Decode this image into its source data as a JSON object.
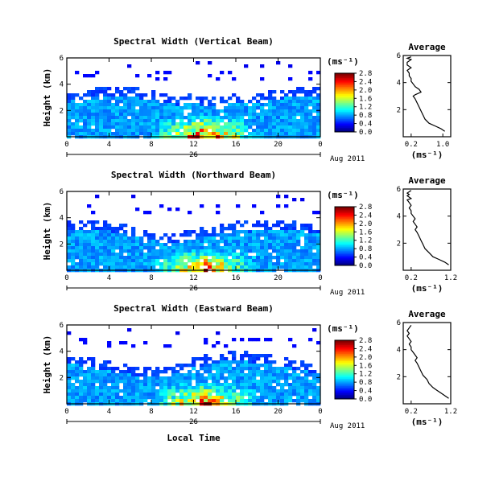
{
  "figure": {
    "bottom_xlabel": "Local Time",
    "date_label": "Aug 2011",
    "day_label": "26",
    "colorbar_unit": "(ms⁻¹)",
    "avg_title": "Average",
    "avg_xlabel": "(ms⁻¹)"
  },
  "chart_data": [
    {
      "type": "heatmap",
      "title": "Spectral Width (Vertical Beam)",
      "ylabel": "Height (km)",
      "xlabel": "Local Time",
      "xticks": [
        "0",
        "4",
        "8",
        "12",
        "16",
        "20",
        "0"
      ],
      "xlim": [
        0,
        24
      ],
      "yticks": [
        "2",
        "4",
        "6"
      ],
      "ylim": [
        0,
        6
      ],
      "colorbar_ticks": [
        "0.0",
        "0.4",
        "0.8",
        "1.2",
        "1.6",
        "2.0",
        "2.4",
        "2.8"
      ],
      "colorbar_range": [
        0,
        2.8
      ],
      "profile": {
        "title": "Average",
        "xlabel": "(ms⁻¹)",
        "xticks": [
          "0.2",
          "1.0"
        ],
        "xlim": [
          0,
          1.2
        ],
        "yticks": [
          "2",
          "4",
          "6"
        ],
        "ylim": [
          0,
          6
        ],
        "x": [
          1.05,
          0.95,
          0.8,
          0.65,
          0.55,
          0.5,
          0.45,
          0.4,
          0.35,
          0.3,
          0.25,
          0.3,
          0.45,
          0.4,
          0.3,
          0.25,
          0.2,
          0.2,
          0.15,
          0.15,
          0.1,
          0.15,
          0.2,
          0.1,
          0.1,
          0.15,
          0.2,
          0.1,
          0.2
        ],
        "y": [
          0.4,
          0.6,
          0.8,
          1.0,
          1.3,
          1.6,
          1.9,
          2.2,
          2.5,
          2.8,
          3.0,
          3.1,
          3.3,
          3.5,
          3.7,
          3.9,
          4.1,
          4.3,
          4.5,
          4.7,
          4.9,
          5.0,
          5.1,
          5.3,
          5.5,
          5.6,
          5.7,
          5.8,
          5.9
        ]
      }
    },
    {
      "type": "heatmap",
      "title": "Spectral Width (Northward Beam)",
      "ylabel": "Height (km)",
      "xlabel": "Local Time",
      "xticks": [
        "0",
        "4",
        "8",
        "12",
        "16",
        "20",
        "0"
      ],
      "xlim": [
        0,
        24
      ],
      "yticks": [
        "2",
        "4",
        "6"
      ],
      "ylim": [
        0,
        6
      ],
      "colorbar_ticks": [
        "0.0",
        "0.4",
        "0.8",
        "1.2",
        "1.6",
        "2.0",
        "2.4",
        "2.8"
      ],
      "colorbar_range": [
        0,
        2.8
      ],
      "profile": {
        "title": "Average",
        "xlabel": "(ms⁻¹)",
        "xticks": [
          "0.2",
          "1.2"
        ],
        "xlim": [
          0,
          1.2
        ],
        "yticks": [
          "2",
          "4",
          "6"
        ],
        "ylim": [
          0,
          6
        ],
        "x": [
          1.15,
          1.05,
          0.9,
          0.75,
          0.65,
          0.55,
          0.5,
          0.45,
          0.4,
          0.35,
          0.3,
          0.35,
          0.3,
          0.25,
          0.3,
          0.25,
          0.2,
          0.2,
          0.15,
          0.2,
          0.15,
          0.1,
          0.2,
          0.15,
          0.1,
          0.15,
          0.1,
          0.2
        ],
        "y": [
          0.4,
          0.6,
          0.8,
          1.0,
          1.3,
          1.6,
          1.9,
          2.2,
          2.5,
          2.8,
          3.0,
          3.2,
          3.4,
          3.6,
          3.8,
          4.0,
          4.2,
          4.4,
          4.6,
          4.8,
          5.0,
          5.2,
          5.3,
          5.4,
          5.5,
          5.6,
          5.7,
          5.9
        ]
      }
    },
    {
      "type": "heatmap",
      "title": "Spectral Width (Eastward Beam)",
      "ylabel": "Height (km)",
      "xlabel": "Local Time",
      "xticks": [
        "0",
        "4",
        "8",
        "12",
        "16",
        "20",
        "0"
      ],
      "xlim": [
        0,
        24
      ],
      "yticks": [
        "2",
        "4",
        "6"
      ],
      "ylim": [
        0,
        6
      ],
      "colorbar_ticks": [
        "0.0",
        "0.4",
        "0.8",
        "1.2",
        "1.6",
        "2.0",
        "2.4",
        "2.8"
      ],
      "colorbar_range": [
        0,
        2.8
      ],
      "profile": {
        "title": "Average",
        "xlabel": "(ms⁻¹)",
        "xticks": [
          "0.2",
          "1.2"
        ],
        "xlim": [
          0,
          1.2
        ],
        "yticks": [
          "2",
          "4",
          "6"
        ],
        "ylim": [
          0,
          6
        ],
        "x": [
          1.15,
          1.05,
          0.95,
          0.85,
          0.75,
          0.65,
          0.6,
          0.5,
          0.45,
          0.4,
          0.35,
          0.3,
          0.35,
          0.3,
          0.25,
          0.2,
          0.2,
          0.15,
          0.2,
          0.15,
          0.1,
          0.15,
          0.1,
          0.15,
          0.2
        ],
        "y": [
          0.4,
          0.6,
          0.8,
          1.0,
          1.2,
          1.5,
          1.8,
          2.1,
          2.4,
          2.7,
          3.0,
          3.2,
          3.4,
          3.6,
          3.8,
          4.0,
          4.2,
          4.4,
          4.6,
          4.8,
          5.0,
          5.2,
          5.4,
          5.6,
          5.8
        ]
      }
    }
  ]
}
